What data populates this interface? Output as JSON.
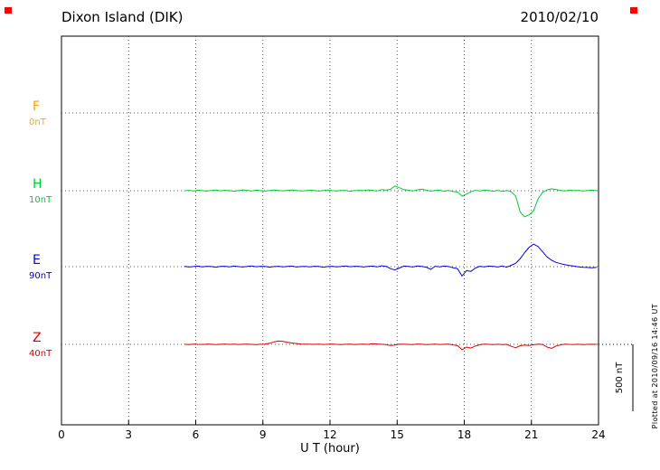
{
  "header": {
    "title": "Dixon Island (DIK)",
    "date": "2010/02/10"
  },
  "meta": {
    "side_note": "Plotted at 2010/09/16 14:46 UT",
    "corner_mark_color": "#FF0000"
  },
  "chart_data": {
    "type": "line",
    "title": "Dixon Island (DIK)",
    "subtitle": "2010/02/10",
    "xlabel": "U T (hour)",
    "xlim": [
      0,
      24
    ],
    "x_ticks": [
      0,
      3,
      6,
      9,
      12,
      15,
      18,
      21,
      24
    ],
    "grid": "dotted",
    "legend_position": "left",
    "scale_bar": {
      "label": "500 nT",
      "nT": 500
    },
    "x_start": 5.5,
    "x_step": 0.2,
    "units": "nT deviation from channel baseline",
    "series": [
      {
        "name": "F",
        "baseline_label": "0nT",
        "color": "#FFA500",
        "values": []
      },
      {
        "name": "H",
        "baseline_label": "10nT",
        "color": "#00CC33",
        "values": [
          0,
          3,
          -2,
          4,
          1,
          -3,
          2,
          5,
          -1,
          3,
          2,
          -4,
          1,
          6,
          3,
          -2,
          4,
          1,
          -3,
          2,
          5,
          2,
          -1,
          3,
          6,
          2,
          -2,
          1,
          4,
          2,
          -3,
          2,
          5,
          1,
          -2,
          3,
          2,
          -4,
          1,
          3,
          2,
          6,
          3,
          -2,
          8,
          4,
          10,
          35,
          22,
          8,
          4,
          -2,
          6,
          12,
          4,
          -3,
          2,
          5,
          -4,
          2,
          -6,
          -10,
          -40,
          -25,
          -8,
          3,
          -2,
          5,
          2,
          -4,
          3,
          -5,
          2,
          -8,
          -40,
          -160,
          -195,
          -180,
          -150,
          -60,
          -12,
          6,
          14,
          8,
          3,
          -2,
          4,
          1,
          3,
          -2,
          2,
          4,
          1
        ]
      },
      {
        "name": "E",
        "baseline_label": "90nT",
        "color": "#0000DD",
        "values": [
          2,
          -3,
          1,
          4,
          -2,
          3,
          1,
          -4,
          2,
          3,
          -2,
          4,
          1,
          -3,
          2,
          5,
          -1,
          3,
          2,
          -4,
          1,
          3,
          -2,
          2,
          4,
          -3,
          1,
          2,
          -2,
          3,
          2,
          -4,
          1,
          3,
          -2,
          2,
          5,
          -1,
          3,
          2,
          -3,
          2,
          4,
          -2,
          6,
          3,
          -15,
          -25,
          -10,
          4,
          2,
          -3,
          5,
          2,
          -4,
          -20,
          3,
          -2,
          4,
          1,
          -8,
          -15,
          -70,
          -30,
          -35,
          -10,
          3,
          -2,
          4,
          2,
          -3,
          5,
          -4,
          10,
          25,
          60,
          105,
          145,
          168,
          150,
          112,
          72,
          48,
          32,
          22,
          14,
          8,
          4,
          -2,
          -5,
          -6,
          -8,
          -6
        ]
      },
      {
        "name": "Z",
        "baseline_label": "40nT",
        "color": "#DD0000",
        "values": [
          1,
          -2,
          2,
          0,
          -1,
          2,
          1,
          -2,
          1,
          2,
          0,
          2,
          -1,
          1,
          2,
          0,
          -2,
          1,
          2,
          8,
          18,
          25,
          22,
          15,
          10,
          6,
          3,
          2,
          1,
          0,
          2,
          -1,
          1,
          2,
          0,
          -2,
          1,
          2,
          -1,
          1,
          2,
          0,
          5,
          3,
          1,
          -2,
          -8,
          -5,
          2,
          1,
          0,
          -2,
          3,
          1,
          -2,
          0,
          2,
          -1,
          1,
          2,
          -4,
          -10,
          -40,
          -20,
          -28,
          -12,
          -3,
          2,
          0,
          -2,
          1,
          -2,
          0,
          -15,
          -25,
          -10,
          -5,
          -8,
          -3,
          2,
          -1,
          -20,
          -30,
          -12,
          -4,
          2,
          0,
          -1,
          1,
          -2,
          0,
          1,
          0
        ]
      }
    ]
  }
}
